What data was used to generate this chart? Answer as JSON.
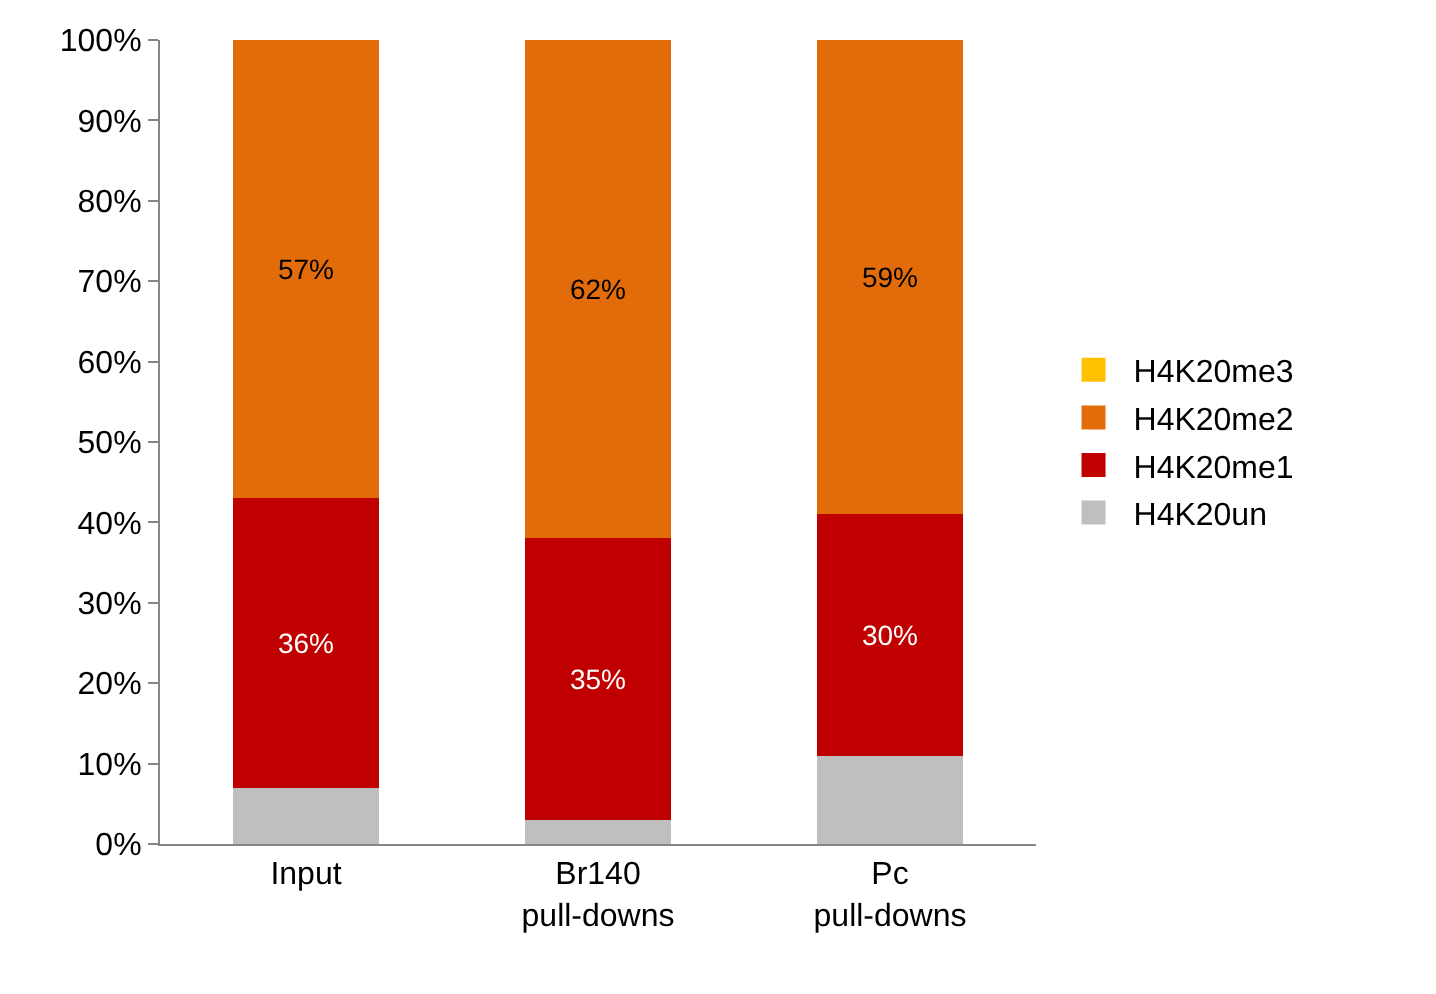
{
  "chart_data": {
    "type": "bar",
    "stacked": true,
    "categories": [
      "Input",
      "Br140\npull-downs",
      "Pc\npull-downs"
    ],
    "series": [
      {
        "name": "H4K20un",
        "color": "#bfbfbf",
        "values": [
          7,
          3,
          11
        ]
      },
      {
        "name": "H4K20me1",
        "color": "#c00000",
        "values": [
          36,
          35,
          30
        ],
        "value_labels": [
          "36%",
          "35%",
          "30%"
        ]
      },
      {
        "name": "H4K20me2",
        "color": "#e36c0a",
        "values": [
          57,
          62,
          59
        ],
        "value_labels": [
          "57%",
          "62%",
          "59%"
        ]
      },
      {
        "name": "H4K20me3",
        "color": "#ffc000",
        "values": [
          0,
          0,
          0
        ]
      }
    ],
    "ylim": [
      0,
      100
    ],
    "yticks": [
      {
        "value": 0,
        "label": "0%"
      },
      {
        "value": 10,
        "label": "10%"
      },
      {
        "value": 20,
        "label": "20%"
      },
      {
        "value": 30,
        "label": "30%"
      },
      {
        "value": 40,
        "label": "40%"
      },
      {
        "value": 50,
        "label": "50%"
      },
      {
        "value": 60,
        "label": "60%"
      },
      {
        "value": 70,
        "label": "70%"
      },
      {
        "value": 80,
        "label": "80%"
      },
      {
        "value": 90,
        "label": "90%"
      },
      {
        "value": 100,
        "label": "100%"
      }
    ],
    "grid": false,
    "legend": "right"
  }
}
